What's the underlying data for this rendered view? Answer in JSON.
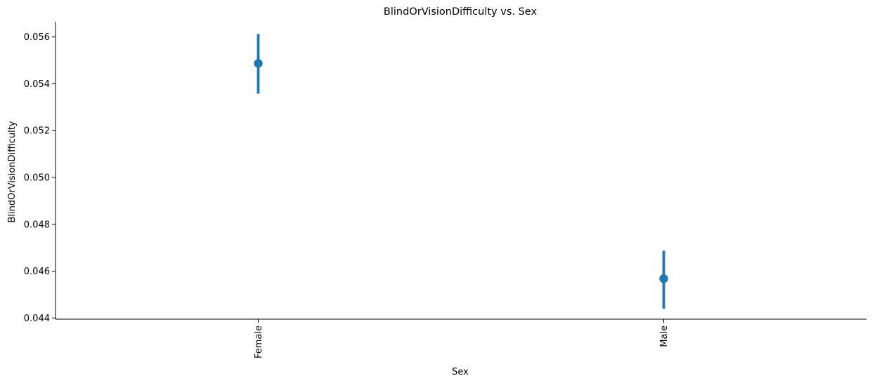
{
  "chart_data": {
    "type": "scatter",
    "title": "BlindOrVisionDifficulty vs. Sex",
    "xlabel": "Sex",
    "ylabel": "BlindOrVisionDifficulty",
    "categories": [
      "Female",
      "Male"
    ],
    "values": [
      0.05487,
      0.04568
    ],
    "error_low": [
      0.05358,
      0.0444
    ],
    "error_high": [
      0.05613,
      0.04687
    ],
    "ylim": [
      0.04395,
      0.05665
    ],
    "yticks": [
      "0.044",
      "0.046",
      "0.048",
      "0.050",
      "0.052",
      "0.054",
      "0.056"
    ],
    "grid": false,
    "color": "#1f77b4"
  }
}
